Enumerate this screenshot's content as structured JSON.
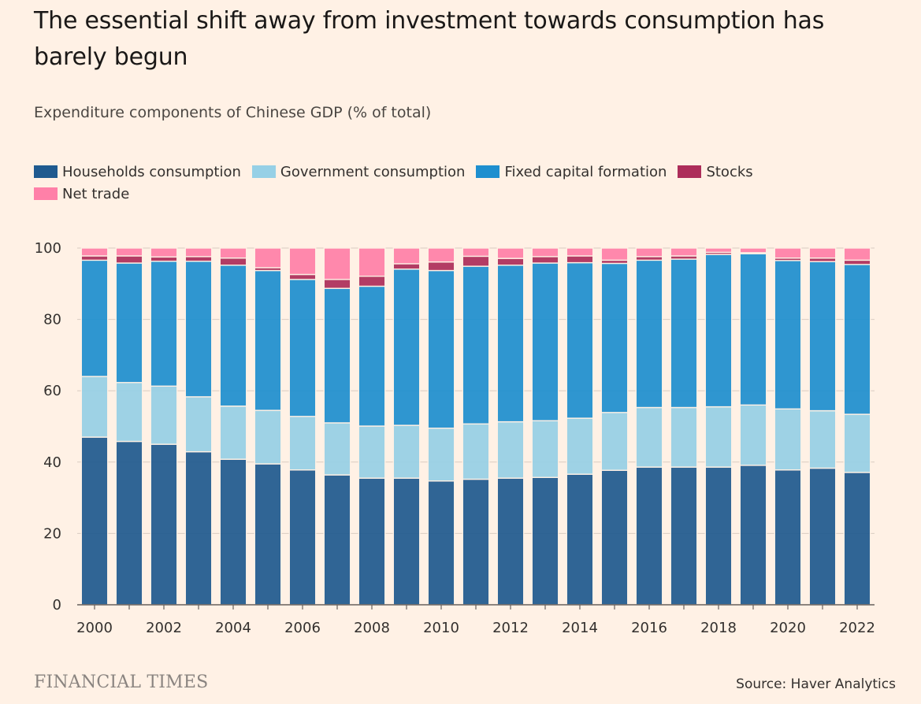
{
  "chart_data": {
    "type": "bar",
    "stacked": true,
    "title": "The essential shift away from investment towards consumption has barely begun",
    "subtitle": "Expenditure components of Chinese GDP (% of total)",
    "xlabel": "",
    "ylabel": "",
    "ylim": [
      0,
      100
    ],
    "yticks": [
      0,
      20,
      40,
      60,
      80,
      100
    ],
    "grid": true,
    "legend_position": "top-left",
    "categories": [
      "2000",
      "2001",
      "2002",
      "2003",
      "2004",
      "2005",
      "2006",
      "2007",
      "2008",
      "2009",
      "2010",
      "2011",
      "2012",
      "2013",
      "2014",
      "2015",
      "2016",
      "2017",
      "2018",
      "2019",
      "2020",
      "2021",
      "2022"
    ],
    "xtick_labels": [
      "2000",
      "2002",
      "2004",
      "2006",
      "2008",
      "2010",
      "2012",
      "2014",
      "2016",
      "2018",
      "2020",
      "2022"
    ],
    "series": [
      {
        "name": "Households consumption",
        "color": "#1f5a8f",
        "values": [
          47.0,
          45.8,
          45.0,
          42.9,
          40.8,
          39.5,
          37.8,
          36.4,
          35.5,
          35.5,
          34.7,
          35.2,
          35.5,
          35.7,
          36.6,
          37.7,
          38.6,
          38.6,
          38.6,
          39.1,
          37.8,
          38.3,
          37.1
        ]
      },
      {
        "name": "Government consumption",
        "color": "#96d0e6",
        "values": [
          17.0,
          16.5,
          16.3,
          15.4,
          14.9,
          15.0,
          15.0,
          14.6,
          14.6,
          14.8,
          14.8,
          15.5,
          15.8,
          15.9,
          15.7,
          16.2,
          16.7,
          16.7,
          16.9,
          16.9,
          17.1,
          16.1,
          16.3
        ]
      },
      {
        "name": "Fixed capital formation",
        "color": "#1e8fcf",
        "values": [
          32.6,
          33.5,
          35.0,
          38.0,
          39.5,
          39.2,
          38.4,
          37.7,
          39.2,
          43.8,
          44.2,
          44.2,
          43.9,
          44.2,
          43.6,
          41.8,
          41.3,
          41.6,
          42.7,
          42.4,
          41.6,
          41.8,
          42.0
        ]
      },
      {
        "name": "Stocks",
        "color": "#ad2d5a",
        "values": [
          1.2,
          2.0,
          1.2,
          1.3,
          2.0,
          0.8,
          1.4,
          2.5,
          2.8,
          1.5,
          2.4,
          2.8,
          1.9,
          1.8,
          1.9,
          0.9,
          1.0,
          0.9,
          0.6,
          0.3,
          0.7,
          1.0,
          1.2
        ]
      },
      {
        "name": "Net trade",
        "color": "#ff80a8",
        "values": [
          2.2,
          2.2,
          2.5,
          2.4,
          2.8,
          5.5,
          7.4,
          8.8,
          7.9,
          4.4,
          3.9,
          2.3,
          2.9,
          2.4,
          2.2,
          3.4,
          2.4,
          2.2,
          1.2,
          1.3,
          2.8,
          2.8,
          3.4
        ]
      }
    ]
  },
  "footer": {
    "brand": "FINANCIAL TIMES",
    "source": "Source: Haver Analytics"
  }
}
